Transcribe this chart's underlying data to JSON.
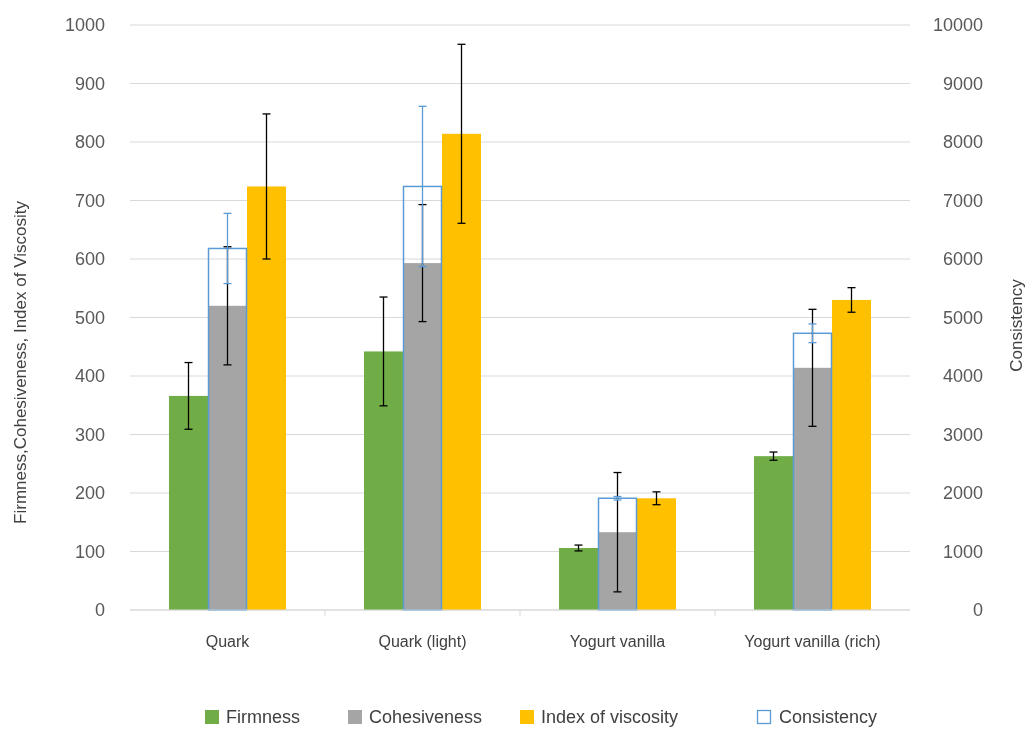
{
  "chart_data": {
    "type": "bar",
    "categories": [
      "Quark",
      "Quark (light)",
      "Yogurt vanilla",
      "Yogurt vanilla (rich)"
    ],
    "series": [
      {
        "name": "Firmness",
        "color": "#70ad47",
        "values": [
          366,
          442,
          106,
          263
        ],
        "errors": [
          57,
          93,
          5,
          7
        ]
      },
      {
        "name": "Cohesiveness",
        "color": "#a5a5a5",
        "values": [
          520,
          593,
          133,
          414
        ],
        "errors": [
          101,
          100,
          102,
          100
        ]
      },
      {
        "name": "Index of viscosity",
        "color": "#ffc000",
        "values": [
          724,
          814,
          191,
          530
        ],
        "errors": [
          124,
          153,
          11,
          21
        ]
      },
      {
        "name": "Consistency",
        "color": "#5b9bd5",
        "axis": "y2",
        "values": [
          6180,
          7240,
          1910,
          4730
        ],
        "errors": [
          600,
          1370,
          30,
          160
        ]
      }
    ],
    "ylabel": "Firmness,Cohesiveness, Index of Viscosity",
    "y2label": "Consistency",
    "ylim": [
      0,
      1000
    ],
    "yticks": [
      0,
      100,
      200,
      300,
      400,
      500,
      600,
      700,
      800,
      900,
      1000
    ],
    "y2lim": [
      0,
      10000
    ],
    "y2ticks": [
      0,
      1000,
      2000,
      3000,
      4000,
      5000,
      6000,
      7000,
      8000,
      9000,
      10000
    ],
    "grid": "y",
    "legend": "bottom"
  }
}
